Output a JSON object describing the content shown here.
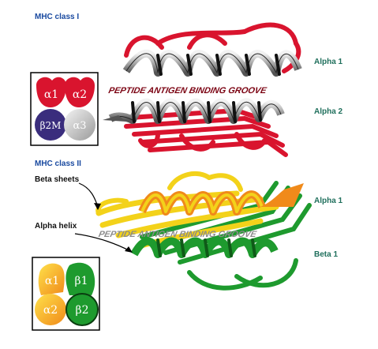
{
  "class1": {
    "title": "MHC class I",
    "groove": "PEPTIDE ANTIGEN BINDING GROOVE",
    "label_top": "Alpha 1",
    "label_bottom": "Alpha 2",
    "domains": [
      {
        "label": "α1",
        "color": "#d9142e"
      },
      {
        "label": "α2",
        "color": "#d9142e"
      },
      {
        "label": "β2M",
        "color": "#3a2d7d"
      },
      {
        "label": "α3",
        "color": "#cfcfcf"
      }
    ]
  },
  "class2": {
    "title": "MHC class II",
    "groove": "PEPTIDE ANTIGEN BINDING GROOVE",
    "label_top": "Alpha 1",
    "label_bottom": "Beta 1",
    "pointer_sheets": "Beta sheets",
    "pointer_helix": "Alpha helix",
    "domains": [
      {
        "label": "α1",
        "color": "#f5a800"
      },
      {
        "label": "β1",
        "color": "#1e9a2e"
      },
      {
        "label": "α2",
        "color": "#f5a800"
      },
      {
        "label": "β2",
        "color": "#1e9a2e"
      }
    ]
  },
  "colors": {
    "class1_ribbon": "#d9142e",
    "class1_helix": "#b8b8b8",
    "class2_yellow": "#f3d21a",
    "class2_orange": "#f08a1a",
    "class2_green": "#1e9a2e",
    "title_blue": "#1a4aa0",
    "label_teal": "#1f6f5c"
  }
}
